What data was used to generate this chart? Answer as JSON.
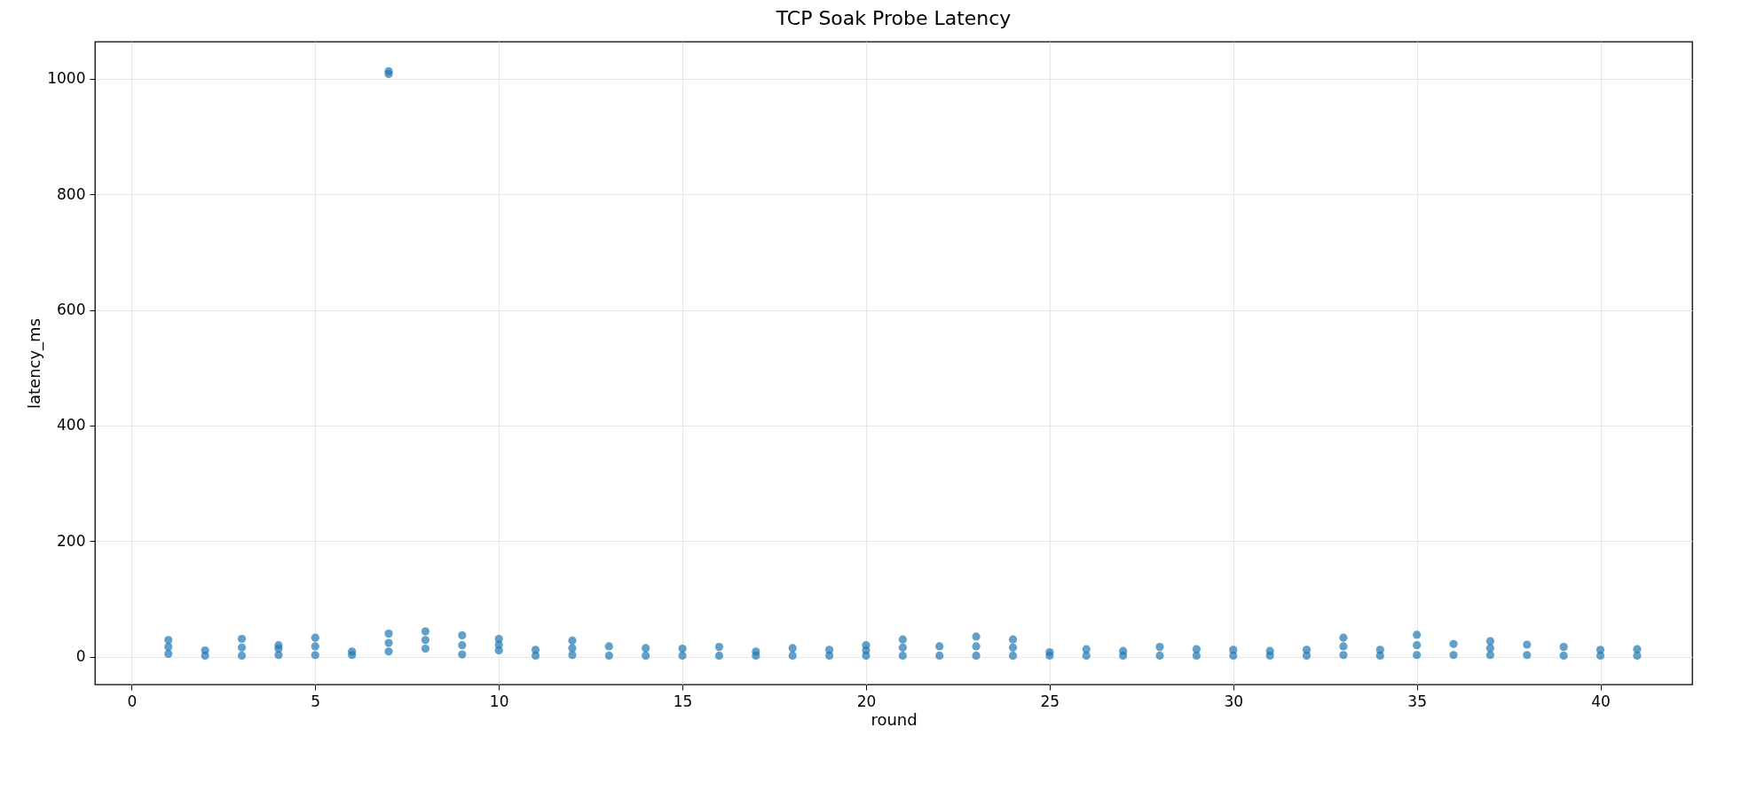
{
  "chart_data": {
    "type": "scatter",
    "title": "TCP Soak Probe Latency",
    "xlabel": "round",
    "ylabel": "latency_ms",
    "x": [
      1,
      1,
      1,
      2,
      2,
      3,
      3,
      3,
      4,
      4,
      4,
      5,
      5,
      5,
      6,
      6,
      7,
      7,
      7,
      7,
      7,
      8,
      8,
      8,
      9,
      9,
      9,
      10,
      10,
      10,
      11,
      11,
      12,
      12,
      12,
      13,
      13,
      14,
      14,
      15,
      15,
      16,
      16,
      17,
      17,
      18,
      18,
      19,
      19,
      20,
      20,
      20,
      21,
      21,
      21,
      22,
      22,
      23,
      23,
      23,
      24,
      24,
      24,
      25,
      25,
      26,
      26,
      27,
      27,
      28,
      28,
      29,
      29,
      30,
      30,
      31,
      31,
      32,
      32,
      33,
      33,
      33,
      34,
      34,
      35,
      35,
      35,
      36,
      36,
      37,
      37,
      37,
      38,
      38,
      39,
      39,
      40,
      40,
      41,
      41
    ],
    "values": [
      5,
      17,
      29,
      2,
      11,
      2,
      16,
      31,
      3,
      14,
      20,
      3,
      18,
      33,
      3,
      9,
      9,
      24,
      40,
      1008,
      1013,
      14,
      29,
      44,
      4,
      20,
      37,
      11,
      21,
      31,
      2,
      12,
      3,
      15,
      28,
      2,
      18,
      2,
      15,
      2,
      14,
      2,
      17,
      2,
      9,
      2,
      15,
      2,
      12,
      2,
      11,
      20,
      2,
      16,
      30,
      2,
      18,
      2,
      18,
      35,
      2,
      16,
      30,
      2,
      8,
      2,
      13,
      2,
      10,
      2,
      17,
      2,
      13,
      2,
      12,
      2,
      10,
      2,
      12,
      3,
      18,
      33,
      2,
      12,
      3,
      20,
      38,
      3,
      22,
      3,
      15,
      27,
      3,
      21,
      2,
      17,
      2,
      12,
      2,
      13
    ],
    "color": "#1f77b4",
    "marker": "circle",
    "xlim": [
      -1,
      42.5
    ],
    "xticks": [
      0,
      5,
      10,
      15,
      20,
      25,
      30,
      35,
      40
    ],
    "ylim": [
      -48,
      1064
    ],
    "yticks": [
      0,
      200,
      400,
      600,
      800,
      1000
    ],
    "grid": true
  }
}
